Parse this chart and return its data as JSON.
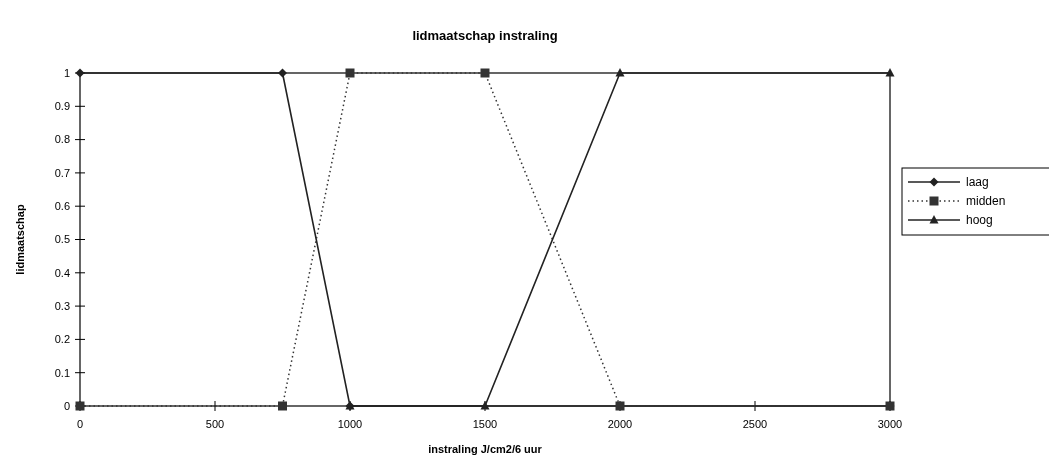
{
  "chart_data": {
    "type": "line",
    "title": "lidmaatschap instraling",
    "xlabel": "instraling J/cm2/6 uur",
    "ylabel": "lidmaatschap",
    "xlim": [
      0,
      3000
    ],
    "xticks": [
      0,
      500,
      1000,
      1500,
      2000,
      2500,
      3000
    ],
    "ylim": [
      0,
      1
    ],
    "yticks": [
      0,
      0.1,
      0.2,
      0.3,
      0.4,
      0.5,
      0.6,
      0.7,
      0.8,
      0.9,
      1
    ],
    "grid": false,
    "legend": "right",
    "series": [
      {
        "name": "laag",
        "color": "#222222",
        "marker": "diamond",
        "line_style": "solid",
        "x": [
          0,
          750,
          1000,
          3000
        ],
        "values": [
          1,
          1,
          0,
          0
        ]
      },
      {
        "name": "midden",
        "color": "#333333",
        "marker": "square",
        "line_style": "dotted",
        "x": [
          0,
          750,
          1000,
          1500,
          2000,
          3000
        ],
        "values": [
          0,
          0,
          1,
          1,
          0,
          0
        ]
      },
      {
        "name": "hoog",
        "color": "#222222",
        "marker": "triangle",
        "line_style": "solid",
        "x": [
          1000,
          1500,
          2000,
          3000
        ],
        "values": [
          0,
          0,
          1,
          1
        ]
      }
    ]
  }
}
